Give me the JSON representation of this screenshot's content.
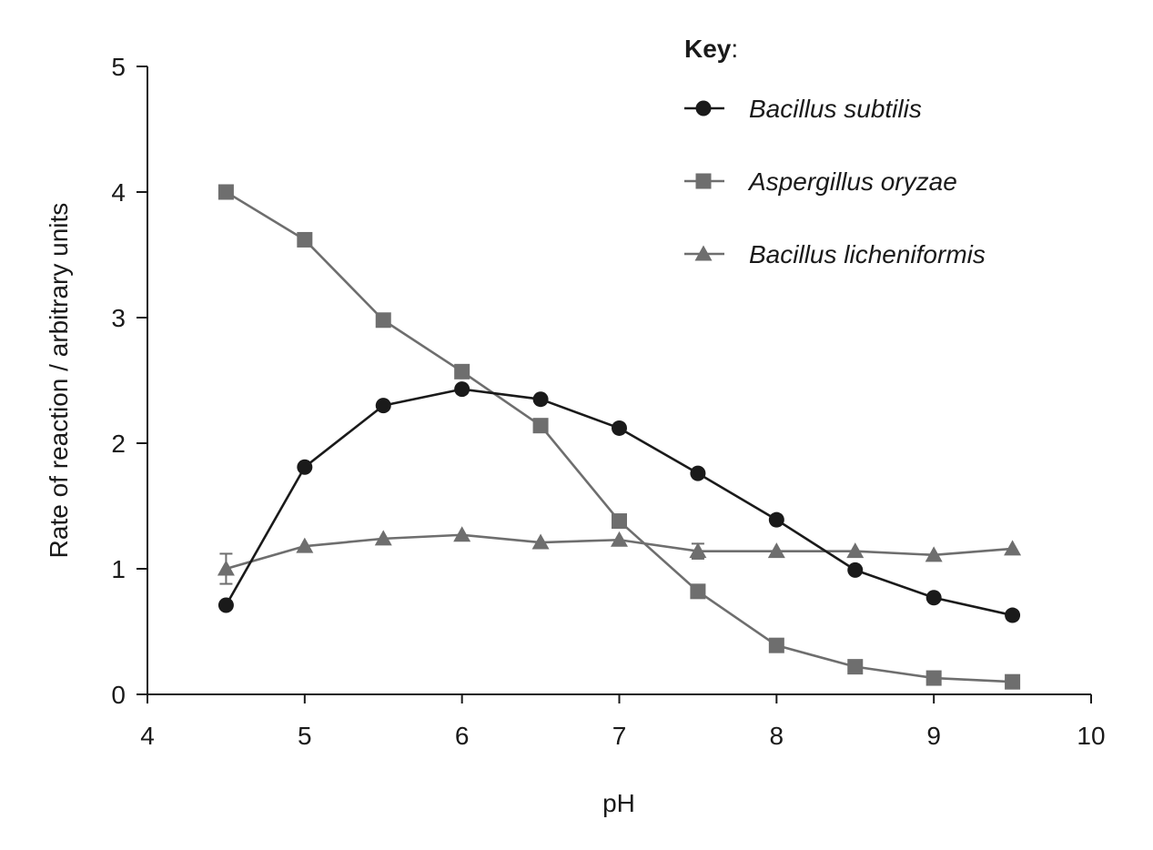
{
  "chart_data": {
    "type": "line",
    "xlabel": "pH",
    "ylabel": "Rate of reaction / arbitrary units",
    "xlim": [
      4,
      10
    ],
    "ylim": [
      0,
      5
    ],
    "xticks": [
      "4",
      "5",
      "6",
      "7",
      "8",
      "9",
      "10"
    ],
    "yticks": [
      "0",
      "1",
      "2",
      "3",
      "4",
      "5"
    ],
    "grid": false,
    "legend": {
      "title_bold": "Key",
      "title_suffix": ":",
      "placement": "top-right"
    },
    "series": [
      {
        "name": "Bacillus subtilis",
        "marker": "circle",
        "color": "#1a1a1a",
        "x": [
          4.5,
          5.0,
          5.5,
          6.0,
          6.5,
          7.0,
          7.5,
          8.0,
          8.5,
          9.0,
          9.5
        ],
        "values": [
          0.71,
          1.81,
          2.3,
          2.43,
          2.35,
          2.12,
          1.76,
          1.39,
          0.99,
          0.77,
          0.63
        ]
      },
      {
        "name": "Aspergillus oryzae",
        "marker": "square",
        "color": "#6e6e6e",
        "x": [
          4.5,
          5.0,
          5.5,
          6.0,
          6.5,
          7.0,
          7.5,
          8.0,
          8.5,
          9.0,
          9.5
        ],
        "values": [
          4.0,
          3.62,
          2.98,
          2.57,
          2.14,
          1.38,
          0.82,
          0.39,
          0.22,
          0.13,
          0.1
        ]
      },
      {
        "name": "Bacillus licheniformis",
        "marker": "triangle",
        "color": "#6e6e6e",
        "x": [
          4.5,
          5.0,
          5.5,
          6.0,
          6.5,
          7.0,
          7.5,
          8.0,
          8.5,
          9.0,
          9.5
        ],
        "values": [
          1.0,
          1.18,
          1.24,
          1.27,
          1.21,
          1.23,
          1.14,
          1.14,
          1.14,
          1.11,
          1.16
        ],
        "error": [
          0.12,
          0,
          0,
          0,
          0,
          0,
          0.06,
          0,
          0,
          0,
          0
        ]
      }
    ]
  }
}
